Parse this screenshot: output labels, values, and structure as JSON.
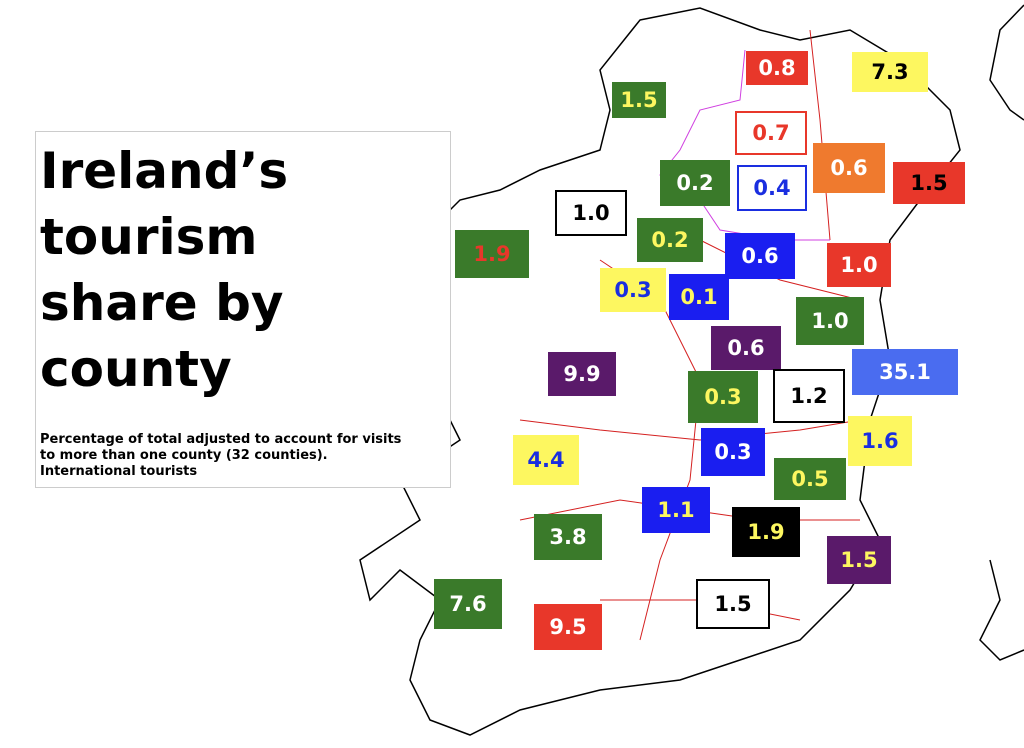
{
  "title": [
    "Ireland’s",
    "tourism",
    "share by",
    "county"
  ],
  "subtitle": [
    "Percentage of total adjusted to account for visits",
    "to more than one county (32 counties).",
    "International tourists"
  ],
  "labels": [
    {
      "text": "0.8",
      "fill": "#e8372a",
      "color": "#ffffff"
    },
    {
      "text": "7.3",
      "fill": "#fdf760",
      "color": "#000000"
    },
    {
      "text": "1.5",
      "fill": "#3a7a2a",
      "color": "#fdf760"
    },
    {
      "text": "0.7",
      "fill": "#ffffff",
      "color": "#e8372a",
      "border": "#e8372a"
    },
    {
      "text": "0.6",
      "fill": "#ef7a2e",
      "color": "#ffffff"
    },
    {
      "text": "1.5",
      "fill": "#e8372a",
      "color": "#000000"
    },
    {
      "text": "0.2",
      "fill": "#3a7a2a",
      "color": "#ffffff"
    },
    {
      "text": "0.4",
      "fill": "#ffffff",
      "color": "#1a2ee0",
      "border": "#1a2ee0"
    },
    {
      "text": "1.0",
      "fill": "#ffffff",
      "color": "#000000",
      "border": "#000000"
    },
    {
      "text": "1.9",
      "fill": "#3a7a2a",
      "color": "#e8372a"
    },
    {
      "text": "0.2",
      "fill": "#3a7a2a",
      "color": "#fdf760"
    },
    {
      "text": "0.6",
      "fill": "#1a1ef0",
      "color": "#ffffff"
    },
    {
      "text": "1.0",
      "fill": "#e8372a",
      "color": "#ffffff"
    },
    {
      "text": "0.3",
      "fill": "#fdf760",
      "color": "#1a2ee0"
    },
    {
      "text": "0.1",
      "fill": "#1a1ef0",
      "color": "#fdf760"
    },
    {
      "text": "1.0",
      "fill": "#3a7a2a",
      "color": "#ffffff"
    },
    {
      "text": "0.6",
      "fill": "#5a1a6a",
      "color": "#ffffff"
    },
    {
      "text": "35.1",
      "fill": "#4a6cf0",
      "color": "#ffffff"
    },
    {
      "text": "9.9",
      "fill": "#5a1a6a",
      "color": "#ffffff"
    },
    {
      "text": "0.3",
      "fill": "#3a7a2a",
      "color": "#fdf760"
    },
    {
      "text": "1.2",
      "fill": "#ffffff",
      "color": "#000000",
      "border": "#000000"
    },
    {
      "text": "1.6",
      "fill": "#fdf760",
      "color": "#1a2ee0"
    },
    {
      "text": "4.4",
      "fill": "#fdf760",
      "color": "#1a2ee0"
    },
    {
      "text": "0.3",
      "fill": "#1a1ef0",
      "color": "#ffffff"
    },
    {
      "text": "0.5",
      "fill": "#3a7a2a",
      "color": "#fdf760"
    },
    {
      "text": "1.1",
      "fill": "#1a1ef0",
      "color": "#fdf760"
    },
    {
      "text": "1.9",
      "fill": "#000000",
      "color": "#fdf760"
    },
    {
      "text": "3.8",
      "fill": "#3a7a2a",
      "color": "#ffffff"
    },
    {
      "text": "1.5",
      "fill": "#5a1a6a",
      "color": "#fdf760"
    },
    {
      "text": "7.6",
      "fill": "#3a7a2a",
      "color": "#ffffff"
    },
    {
      "text": "9.5",
      "fill": "#e8372a",
      "color": "#ffffff"
    },
    {
      "text": "1.5",
      "fill": "#ffffff",
      "color": "#000000",
      "border": "#000000"
    }
  ]
}
